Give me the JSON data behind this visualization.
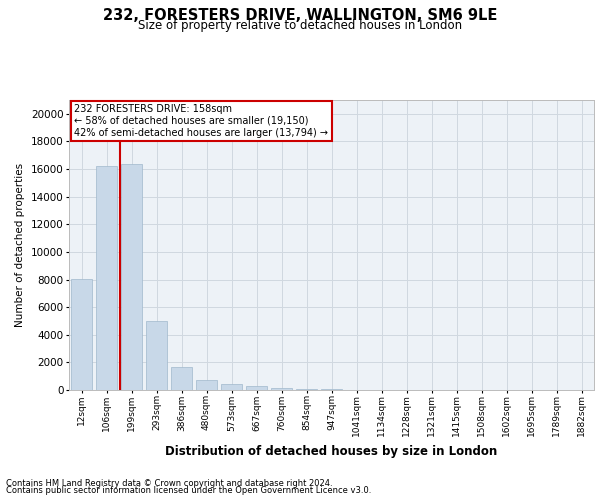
{
  "title": "232, FORESTERS DRIVE, WALLINGTON, SM6 9LE",
  "subtitle": "Size of property relative to detached houses in London",
  "xlabel": "Distribution of detached houses by size in London",
  "ylabel": "Number of detached properties",
  "footer_line1": "Contains HM Land Registry data © Crown copyright and database right 2024.",
  "footer_line2": "Contains public sector information licensed under the Open Government Licence v3.0.",
  "property_label": "232 FORESTERS DRIVE: 158sqm",
  "annotation_line1": "← 58% of detached houses are smaller (19,150)",
  "annotation_line2": "42% of semi-detached houses are larger (13,794) →",
  "bar_color": "#c8d8e8",
  "bar_edge_color": "#a0b8cc",
  "vline_color": "#cc0000",
  "annotation_box_edge": "#cc0000",
  "annotation_box_face": "#ffffff",
  "grid_color": "#d0d8e0",
  "background_color": "#edf2f7",
  "categories": [
    "12sqm",
    "106sqm",
    "199sqm",
    "293sqm",
    "386sqm",
    "480sqm",
    "573sqm",
    "667sqm",
    "760sqm",
    "854sqm",
    "947sqm",
    "1041sqm",
    "1134sqm",
    "1228sqm",
    "1321sqm",
    "1415sqm",
    "1508sqm",
    "1602sqm",
    "1695sqm",
    "1789sqm",
    "1882sqm"
  ],
  "values": [
    8050,
    16200,
    16400,
    5000,
    1650,
    700,
    430,
    290,
    130,
    90,
    40,
    0,
    0,
    0,
    0,
    0,
    0,
    0,
    0,
    0,
    0
  ],
  "ylim": [
    0,
    21000
  ],
  "yticks": [
    0,
    2000,
    4000,
    6000,
    8000,
    10000,
    12000,
    14000,
    16000,
    18000,
    20000
  ],
  "vline_x": 1.559
}
